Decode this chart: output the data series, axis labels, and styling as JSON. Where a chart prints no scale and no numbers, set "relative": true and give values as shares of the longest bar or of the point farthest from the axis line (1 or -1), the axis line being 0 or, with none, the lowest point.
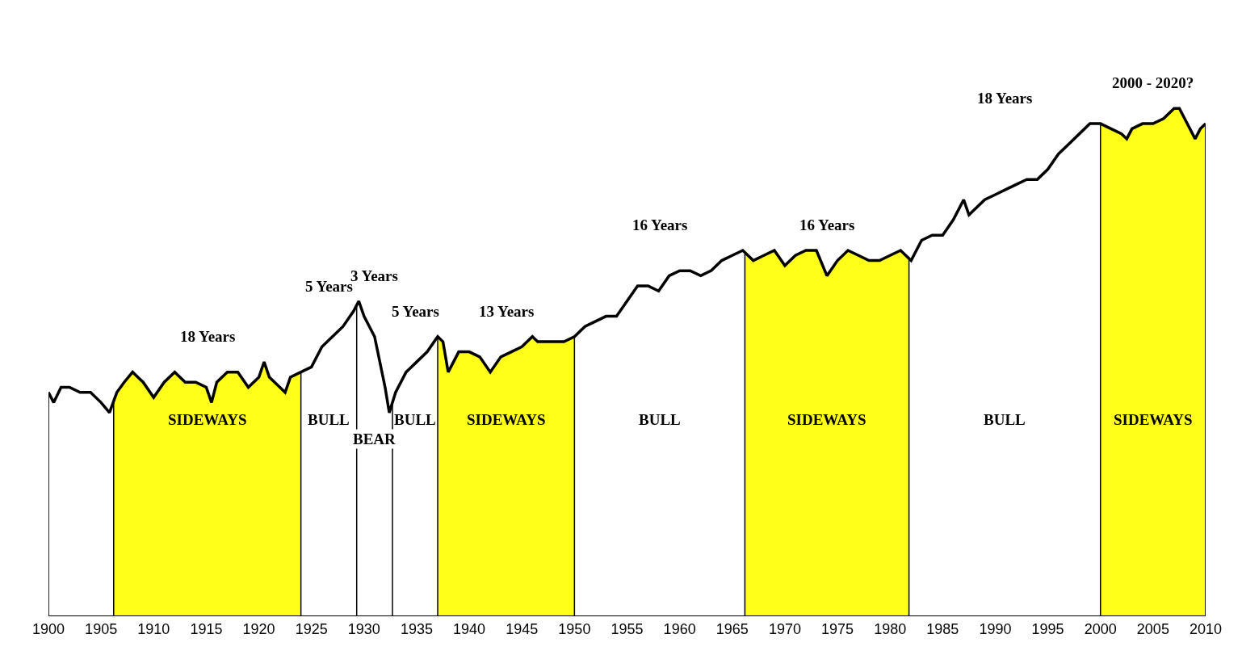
{
  "chart_data": {
    "type": "line",
    "relative": true,
    "marker": "none",
    "line_style": "solid",
    "x": [
      1900,
      1900.5,
      1901.2,
      1902,
      1903,
      1904,
      1905,
      1905.8,
      1906.5,
      1907.2,
      1908,
      1908.5,
      1909,
      1910,
      1911,
      1912,
      1913,
      1914,
      1915,
      1915.5,
      1916,
      1917,
      1918,
      1919,
      1920,
      1920.5,
      1921,
      1922,
      1922.5,
      1923,
      1924,
      1925,
      1926,
      1927,
      1928,
      1929,
      1929.5,
      1930,
      1931,
      1932,
      1932.4,
      1933,
      1934,
      1935,
      1936,
      1937,
      1937.5,
      1938,
      1939,
      1940,
      1941,
      1942,
      1943,
      1944,
      1945,
      1946,
      1946.5,
      1947,
      1948,
      1949,
      1950,
      1951,
      1952,
      1953,
      1954,
      1955,
      1956,
      1957,
      1958,
      1959,
      1960,
      1961,
      1962,
      1963,
      1964,
      1965,
      1966,
      1967,
      1968,
      1969,
      1970,
      1971,
      1972,
      1973,
      1974,
      1975,
      1976,
      1977,
      1978,
      1979,
      1980,
      1981,
      1982,
      1983,
      1984,
      1985,
      1986,
      1987,
      1987.5,
      1988,
      1989,
      1990,
      1991,
      1992,
      1993,
      1994,
      1995,
      1996,
      1997,
      1998,
      1999,
      2000,
      2001,
      2002,
      2002.5,
      2003,
      2004,
      2005,
      2006,
      2007,
      2007.5,
      2008,
      2009,
      2009.5,
      2010
    ],
    "series": [
      {
        "type": "area",
        "color": "#ffff1a",
        "x": [
          1906.2,
          1906.5,
          1907.2,
          1908,
          1908.5,
          1909,
          1910,
          1911,
          1912,
          1913,
          1914,
          1915,
          1915.5,
          1916,
          1917,
          1918,
          1919,
          1920,
          1920.5,
          1921,
          1922,
          1922.5,
          1923,
          1924
        ],
        "values": [
          0.42,
          0.44,
          0.46,
          0.48,
          0.47,
          0.46,
          0.43,
          0.46,
          0.48,
          0.46,
          0.46,
          0.45,
          0.42,
          0.46,
          0.48,
          0.48,
          0.45,
          0.47,
          0.5,
          0.47,
          0.45,
          0.44,
          0.47,
          0.48
        ]
      },
      {
        "type": "area",
        "color": "#ffff1a",
        "x": [
          1937,
          1937.5,
          1938,
          1939,
          1940,
          1941,
          1942,
          1943,
          1944,
          1945,
          1946,
          1946.5,
          1947,
          1948,
          1949,
          1950
        ],
        "values": [
          0.55,
          0.54,
          0.48,
          0.52,
          0.52,
          0.51,
          0.48,
          0.51,
          0.52,
          0.53,
          0.55,
          0.54,
          0.54,
          0.54,
          0.54,
          0.55
        ]
      },
      {
        "type": "area",
        "color": "#ffff1a",
        "x": [
          1966.2,
          1967,
          1968,
          1969,
          1970,
          1971,
          1972,
          1973,
          1974,
          1975,
          1976,
          1977,
          1978,
          1979,
          1980,
          1981,
          1981.8
        ],
        "values": [
          0.72,
          0.7,
          0.71,
          0.72,
          0.69,
          0.71,
          0.72,
          0.72,
          0.67,
          0.7,
          0.72,
          0.71,
          0.7,
          0.7,
          0.71,
          0.72,
          0.7
        ]
      },
      {
        "type": "area",
        "color": "#ffff1a",
        "x": [
          2000,
          2001,
          2002,
          2002.5,
          2003,
          2004,
          2005,
          2006,
          2007,
          2007.5,
          2008,
          2009,
          2009.5,
          2010
        ],
        "values": [
          0.97,
          0.96,
          0.95,
          0.94,
          0.96,
          0.97,
          0.97,
          0.98,
          1.0,
          1.0,
          0.98,
          0.94,
          0.96,
          0.97
        ]
      },
      {
        "color": "#000000",
        "values": [
          0.44,
          0.42,
          0.45,
          0.45,
          0.44,
          0.44,
          0.42,
          0.4,
          0.44,
          0.46,
          0.48,
          0.47,
          0.46,
          0.43,
          0.46,
          0.48,
          0.46,
          0.46,
          0.45,
          0.42,
          0.46,
          0.48,
          0.48,
          0.45,
          0.47,
          0.5,
          0.47,
          0.45,
          0.44,
          0.47,
          0.48,
          0.49,
          0.53,
          0.55,
          0.57,
          0.6,
          0.62,
          0.59,
          0.55,
          0.45,
          0.4,
          0.44,
          0.48,
          0.5,
          0.52,
          0.55,
          0.54,
          0.48,
          0.52,
          0.52,
          0.51,
          0.48,
          0.51,
          0.52,
          0.53,
          0.55,
          0.54,
          0.54,
          0.54,
          0.54,
          0.55,
          0.57,
          0.58,
          0.59,
          0.59,
          0.62,
          0.65,
          0.65,
          0.64,
          0.67,
          0.68,
          0.68,
          0.67,
          0.68,
          0.7,
          0.71,
          0.72,
          0.7,
          0.71,
          0.72,
          0.69,
          0.71,
          0.72,
          0.72,
          0.67,
          0.7,
          0.72,
          0.71,
          0.7,
          0.7,
          0.71,
          0.72,
          0.7,
          0.74,
          0.75,
          0.75,
          0.78,
          0.82,
          0.79,
          0.8,
          0.82,
          0.83,
          0.84,
          0.85,
          0.86,
          0.86,
          0.88,
          0.91,
          0.93,
          0.95,
          0.97,
          0.97,
          0.96,
          0.95,
          0.94,
          0.96,
          0.97,
          0.97,
          0.98,
          1.0,
          1.0,
          0.98,
          0.94,
          0.96,
          0.97
        ]
      }
    ],
    "xlim": [
      1900,
      2010
    ],
    "xticks": [
      1900,
      1905,
      1910,
      1915,
      1920,
      1925,
      1930,
      1935,
      1940,
      1945,
      1950,
      1955,
      1960,
      1965,
      1970,
      1975,
      1980,
      1985,
      1990,
      1995,
      2000,
      2005,
      2010
    ],
    "ref_lines": [
      {
        "axis": "x",
        "value": 1900,
        "color": "#000000"
      },
      {
        "axis": "x",
        "value": 1906.2,
        "color": "#000000"
      },
      {
        "axis": "x",
        "value": 1924,
        "color": "#000000"
      },
      {
        "axis": "x",
        "value": 1929.3,
        "color": "#000000"
      },
      {
        "axis": "x",
        "value": 1932.7,
        "color": "#000000"
      },
      {
        "axis": "x",
        "value": 1937,
        "color": "#000000"
      },
      {
        "axis": "x",
        "value": 1950,
        "color": "#000000"
      },
      {
        "axis": "x",
        "value": 1966.2,
        "color": "#000000"
      },
      {
        "axis": "x",
        "value": 1981.8,
        "color": "#000000"
      },
      {
        "axis": "x",
        "value": 2000,
        "color": "#000000"
      },
      {
        "axis": "x",
        "value": 2010,
        "color": "#000000"
      }
    ],
    "annotations": [
      "18 Years",
      "5 Years",
      "3 Years",
      "5 Years",
      "13 Years",
      "16 Years",
      "16 Years",
      "18 Years",
      "2000 - 2020?",
      "SIDEWAYS",
      "BULL",
      "BEAR",
      "BULL",
      "SIDEWAYS",
      "BULL",
      "SIDEWAYS",
      "BULL",
      "SIDEWAYS"
    ]
  }
}
